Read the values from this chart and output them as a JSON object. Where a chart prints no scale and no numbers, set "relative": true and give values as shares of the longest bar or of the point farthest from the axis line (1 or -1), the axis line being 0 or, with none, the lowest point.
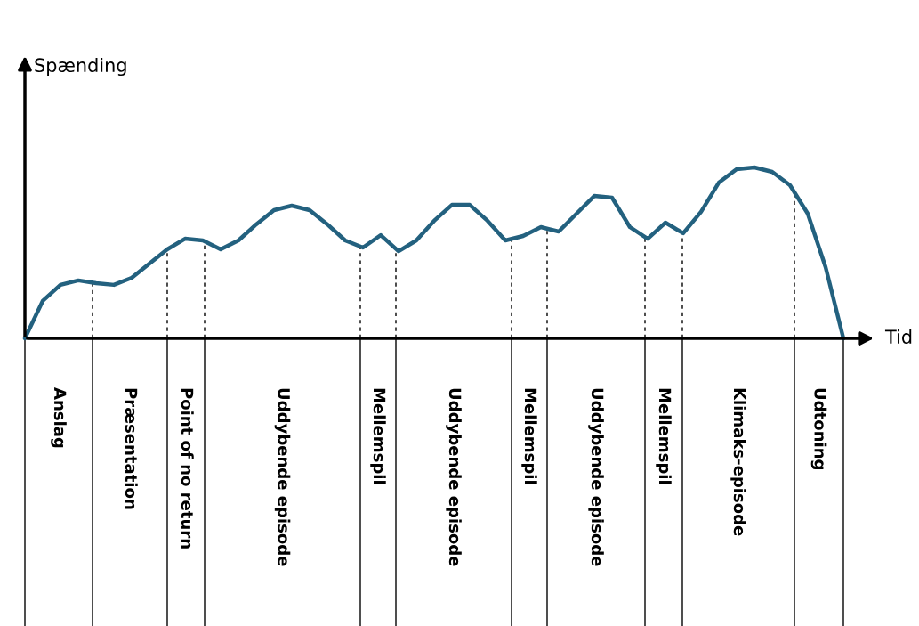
{
  "chart_data": {
    "type": "line",
    "relative": true,
    "xlabel": "Tid",
    "ylabel": "Spænding",
    "categories": [
      null,
      null,
      null,
      null,
      null,
      null,
      null,
      null,
      null,
      null,
      null,
      null,
      null,
      null,
      null,
      null,
      null,
      null,
      null,
      null,
      null,
      null,
      null,
      null,
      null,
      null,
      null,
      null,
      null,
      null,
      null,
      null,
      null,
      null,
      null,
      null,
      null,
      null,
      null,
      null,
      null,
      null,
      null,
      null,
      null,
      null,
      null
    ],
    "series": [
      {
        "color": "#23617f",
        "values": [
          0,
          0.219,
          0.313,
          0.339,
          0.323,
          0.313,
          0.354,
          0.438,
          0.521,
          0.583,
          0.573,
          0.521,
          0.573,
          0.667,
          0.75,
          0.776,
          0.75,
          0.667,
          0.573,
          0.531,
          0.604,
          0.51,
          0.573,
          0.688,
          0.781,
          0.781,
          0.688,
          0.573,
          0.599,
          0.651,
          0.625,
          0.729,
          0.833,
          0.823,
          0.651,
          0.583,
          0.677,
          0.615,
          0.74,
          0.911,
          0.99,
          1.0,
          0.974,
          0.896,
          0.729,
          0.417,
          0
        ]
      }
    ],
    "annotations": [
      "Anslag",
      "Præsentation",
      "Point of no return",
      "Uddybende episode",
      "Mellemspil",
      "Uddybende episode",
      "Mellemspil",
      "Uddybende episode",
      "Mellemspil",
      "Klimaks-episode",
      "Udtoning"
    ]
  }
}
